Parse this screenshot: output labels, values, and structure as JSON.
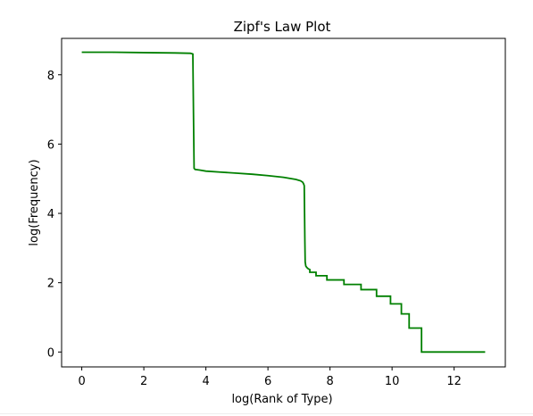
{
  "chart_data": {
    "type": "line",
    "title": "Zipf's Law Plot",
    "xlabel": "log(Rank of Type)",
    "ylabel": "log(Frequency)",
    "xlim": [
      -0.65,
      13.65
    ],
    "ylim": [
      -0.43,
      9.05
    ],
    "xticks": [
      0,
      2,
      4,
      6,
      8,
      10,
      12
    ],
    "yticks": [
      0,
      2,
      4,
      6,
      8
    ],
    "grid": false,
    "legend": "none",
    "series": [
      {
        "color": "#008000",
        "x": [
          0,
          1.0,
          2.0,
          3.0,
          3.5,
          3.55,
          3.58,
          3.6,
          3.62,
          3.65,
          3.8,
          4.0,
          4.5,
          5.0,
          5.5,
          6.0,
          6.5,
          6.9,
          7.05,
          7.12,
          7.15,
          7.17,
          7.18,
          7.19,
          7.2,
          7.22,
          7.25,
          7.3,
          7.35,
          7.35,
          7.5,
          7.5,
          7.55,
          7.55,
          7.9,
          7.9,
          8.45,
          8.45,
          9.0,
          9.0,
          9.5,
          9.5,
          9.95,
          9.95,
          10.3,
          10.3,
          10.55,
          10.55,
          10.95,
          10.95,
          13.0
        ],
        "y": [
          8.65,
          8.65,
          8.64,
          8.63,
          8.62,
          8.61,
          8.6,
          6.9,
          5.3,
          5.27,
          5.25,
          5.22,
          5.19,
          5.16,
          5.13,
          5.09,
          5.04,
          4.98,
          4.94,
          4.9,
          4.85,
          4.8,
          4.0,
          3.2,
          2.6,
          2.48,
          2.44,
          2.4,
          2.38,
          2.3,
          2.3,
          2.3,
          2.3,
          2.2,
          2.2,
          2.08,
          2.08,
          1.95,
          1.95,
          1.8,
          1.8,
          1.61,
          1.61,
          1.39,
          1.39,
          1.1,
          1.1,
          0.69,
          0.69,
          0.0,
          0.0
        ]
      }
    ]
  }
}
